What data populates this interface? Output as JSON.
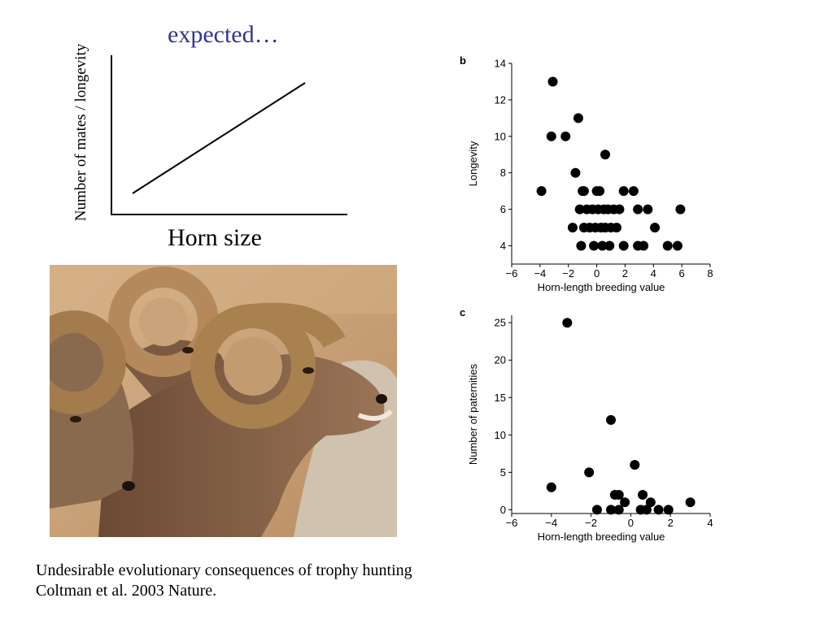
{
  "concept": {
    "title": "expected…",
    "ylabel": "Number of mates / longevity",
    "xlabel": "Horn size"
  },
  "caption": {
    "line1": "Undesirable evolutionary consequences of trophy hunting",
    "line2": "Coltman et al. 2003 Nature."
  },
  "colors": {
    "title": "#333399",
    "points": "#000000",
    "fur": "#8a6a4e",
    "horn": "#b08a5a"
  },
  "chart_data": [
    {
      "type": "line",
      "panel": "",
      "title": "expected…",
      "xlabel": "Horn size",
      "ylabel": "Number of mates / longevity",
      "x": [
        0,
        1
      ],
      "y": [
        0,
        1
      ],
      "ticks": false
    },
    {
      "type": "scatter",
      "panel": "b",
      "xlabel": "Horn-length breeding value",
      "ylabel": "Longevity",
      "xlim": [
        -6,
        8
      ],
      "ylim": [
        3,
        14
      ],
      "xticks": [
        -6,
        -4,
        -2,
        0,
        2,
        4,
        6,
        8
      ],
      "yticks": [
        4,
        6,
        8,
        10,
        12,
        14
      ],
      "points": [
        [
          -3.1,
          13
        ],
        [
          -1.3,
          11
        ],
        [
          -2.2,
          10
        ],
        [
          -3.2,
          10
        ],
        [
          0.6,
          9
        ],
        [
          -1.5,
          8
        ],
        [
          -3.9,
          7
        ],
        [
          -1.0,
          7
        ],
        [
          0.0,
          7
        ],
        [
          1.9,
          7
        ],
        [
          2.6,
          7
        ],
        [
          -0.9,
          7
        ],
        [
          0.2,
          7
        ],
        [
          -1.2,
          6
        ],
        [
          -0.7,
          6
        ],
        [
          -0.3,
          6
        ],
        [
          0.1,
          6
        ],
        [
          0.5,
          6
        ],
        [
          0.8,
          6
        ],
        [
          1.2,
          6
        ],
        [
          1.6,
          6
        ],
        [
          2.9,
          6
        ],
        [
          3.6,
          6
        ],
        [
          5.9,
          6
        ],
        [
          -1.7,
          5
        ],
        [
          -0.9,
          5
        ],
        [
          -0.5,
          5
        ],
        [
          -0.1,
          5
        ],
        [
          0.3,
          5
        ],
        [
          0.6,
          5
        ],
        [
          1.0,
          5
        ],
        [
          1.4,
          5
        ],
        [
          4.1,
          5
        ],
        [
          -1.1,
          4
        ],
        [
          -0.2,
          4
        ],
        [
          0.4,
          4
        ],
        [
          0.9,
          4
        ],
        [
          1.9,
          4
        ],
        [
          2.9,
          4
        ],
        [
          3.3,
          4
        ],
        [
          5.0,
          4
        ],
        [
          5.7,
          4
        ]
      ]
    },
    {
      "type": "scatter",
      "panel": "c",
      "xlabel": "Horn-length breeding value",
      "ylabel": "Number of paternities",
      "xlim": [
        -6,
        4
      ],
      "ylim": [
        -0.5,
        26
      ],
      "xticks": [
        -6,
        -4,
        -2,
        0,
        2,
        4
      ],
      "yticks": [
        0,
        5,
        10,
        15,
        20,
        25
      ],
      "points": [
        [
          -3.2,
          25
        ],
        [
          -1.0,
          12
        ],
        [
          0.2,
          6
        ],
        [
          -2.1,
          5
        ],
        [
          -4.0,
          3
        ],
        [
          -0.8,
          2
        ],
        [
          -0.6,
          2
        ],
        [
          0.6,
          2
        ],
        [
          -0.3,
          1
        ],
        [
          1.0,
          1
        ],
        [
          3.0,
          1
        ],
        [
          -1.7,
          0
        ],
        [
          -1.0,
          0
        ],
        [
          -0.6,
          0
        ],
        [
          0.5,
          0
        ],
        [
          0.8,
          0
        ],
        [
          1.4,
          0
        ],
        [
          1.9,
          0
        ]
      ]
    }
  ]
}
